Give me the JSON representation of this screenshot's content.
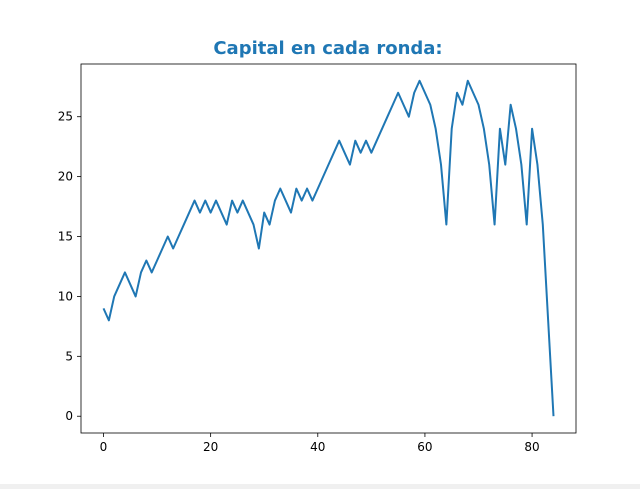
{
  "chart_data": {
    "type": "line",
    "title": "Capital en cada ronda:",
    "xlabel": "",
    "ylabel": "",
    "xlim": [
      -4.2,
      88.2
    ],
    "ylim": [
      -1.4,
      29.4
    ],
    "xticks": [
      0,
      20,
      40,
      60,
      80
    ],
    "yticks": [
      0,
      5,
      10,
      15,
      20,
      25
    ],
    "grid": false,
    "colors": {
      "title": "#1f77b4",
      "line": "#1f77b4",
      "axes": "#000000"
    },
    "series": [
      {
        "x": [
          0,
          1,
          2,
          3,
          4,
          5,
          6,
          7,
          8,
          9,
          10,
          11,
          12,
          13,
          14,
          15,
          16,
          17,
          18,
          19,
          20,
          21,
          22,
          23,
          24,
          25,
          26,
          27,
          28,
          29,
          30,
          31,
          32,
          33,
          34,
          35,
          36,
          37,
          38,
          39,
          40,
          41,
          42,
          43,
          44,
          45,
          46,
          47,
          48,
          49,
          50,
          51,
          52,
          53,
          54,
          55,
          56,
          57,
          58,
          59,
          60,
          61,
          62,
          63,
          64,
          65,
          66,
          67,
          68,
          69,
          70,
          71,
          72,
          73,
          74,
          75,
          76,
          77,
          78,
          79,
          80,
          81,
          82,
          83,
          84
        ],
        "y": [
          9,
          8,
          10,
          11,
          12,
          11,
          10,
          12,
          13,
          12,
          13,
          14,
          15,
          14,
          15,
          16,
          17,
          18,
          17,
          18,
          17,
          18,
          17,
          16,
          18,
          17,
          18,
          17,
          16,
          14,
          17,
          16,
          18,
          19,
          18,
          17,
          19,
          18,
          19,
          18,
          19,
          20,
          21,
          22,
          23,
          22,
          21,
          23,
          22,
          23,
          22,
          23,
          24,
          25,
          26,
          27,
          26,
          25,
          27,
          28,
          27,
          26,
          24,
          21,
          16,
          24,
          27,
          26,
          28,
          27,
          26,
          24,
          21,
          16,
          24,
          21,
          26,
          24,
          21,
          16,
          24,
          21,
          16,
          8,
          0
        ]
      }
    ]
  }
}
